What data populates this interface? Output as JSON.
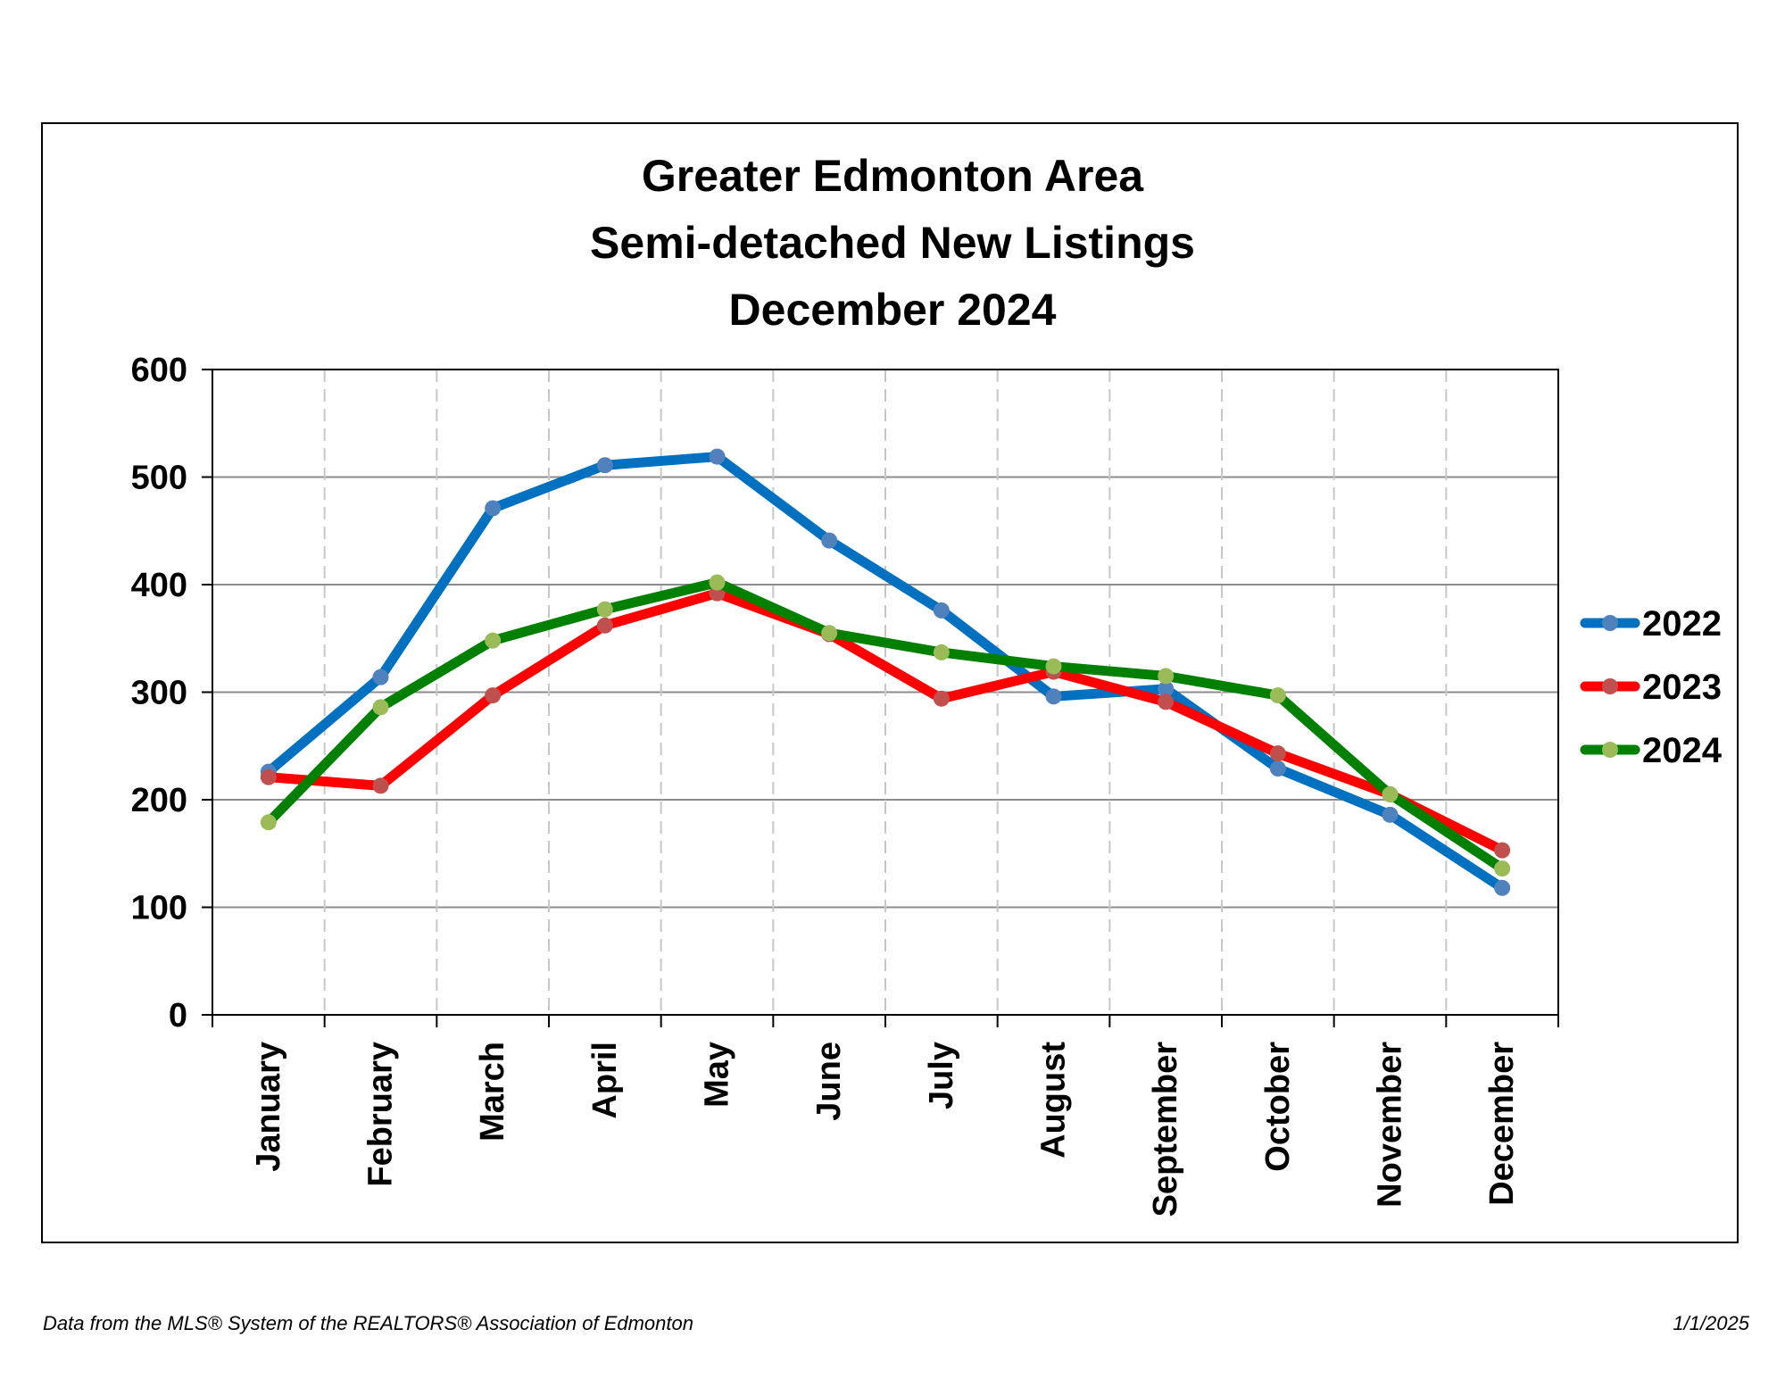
{
  "chart_data": {
    "type": "line",
    "title": [
      "Greater Edmonton Area",
      "Semi-detached New Listings",
      "December 2024"
    ],
    "categories": [
      "January",
      "February",
      "March",
      "April",
      "May",
      "June",
      "July",
      "August",
      "September",
      "October",
      "November",
      "December"
    ],
    "ylim": [
      0,
      600
    ],
    "yticks": [
      0,
      100,
      200,
      300,
      400,
      500,
      600
    ],
    "grid": true,
    "legend_position": "right",
    "series": [
      {
        "name": "2022",
        "color": "#0070C0",
        "marker_color": "#4F81BD",
        "values": [
          226,
          314,
          471,
          511,
          519,
          441,
          376,
          296,
          303,
          229,
          186,
          118
        ]
      },
      {
        "name": "2023",
        "color": "#FF0000",
        "marker_color": "#C0504D",
        "values": [
          221,
          213,
          297,
          362,
          392,
          354,
          294,
          319,
          291,
          243,
          205,
          153
        ]
      },
      {
        "name": "2024",
        "color": "#008000",
        "marker_color": "#9BBB59",
        "values": [
          179,
          286,
          348,
          377,
          402,
          355,
          337,
          324,
          315,
          297,
          205,
          136
        ]
      }
    ]
  },
  "footer": {
    "source": "Data from the MLS® System of the REALTORS® Association of Edmonton",
    "date": "1/1/2025"
  }
}
